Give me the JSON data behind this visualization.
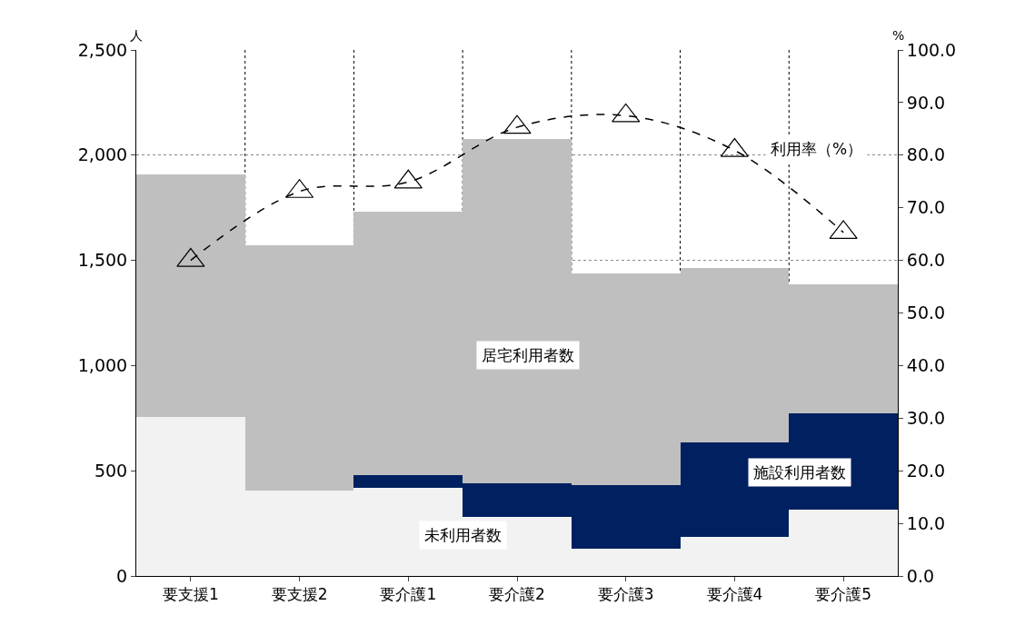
{
  "chart_data": {
    "type": "bar",
    "stacked": true,
    "ylabel": "人",
    "y2label": "%",
    "categories": [
      "要支援1",
      "要支援2",
      "要介護1",
      "要介護2",
      "要介護3",
      "要介護4",
      "要介護5"
    ],
    "series": [
      {
        "name": "未利用者数",
        "color": "#f2f2f2",
        "values": [
          755,
          405,
          420,
          280,
          130,
          185,
          315
        ]
      },
      {
        "name": "施設利用者数",
        "color": "#002060",
        "values": [
          0,
          0,
          60,
          160,
          300,
          450,
          460
        ]
      },
      {
        "name": "居宅利用者数",
        "color": "#bfbfbf",
        "values": [
          1155,
          1165,
          1250,
          1635,
          1010,
          830,
          610
        ]
      },
      {
        "name": "利用率（%）",
        "type": "line",
        "axis": "y2",
        "color": "#000000",
        "marker": "triangle",
        "line_style": "dashed",
        "values": [
          60.0,
          73.1,
          74.9,
          85.3,
          87.5,
          80.9,
          65.3
        ]
      }
    ],
    "ylim": [
      0,
      2500
    ],
    "yticks": [
      0,
      500,
      {
        "value": 1000,
        "label": "1,000"
      },
      {
        "value": 1500,
        "label": "1,500"
      },
      {
        "value": 2000,
        "label": "2,000"
      },
      {
        "value": 2500,
        "label": "2,500"
      }
    ],
    "y2lim": [
      0,
      100
    ],
    "y2ticks": [
      {
        "value": 0,
        "label": "0.0"
      },
      {
        "value": 10,
        "label": "10.0"
      },
      {
        "value": 20,
        "label": "20.0"
      },
      {
        "value": 30,
        "label": "30.0"
      },
      {
        "value": 40,
        "label": "40.0"
      },
      {
        "value": 50,
        "label": "50.0"
      },
      {
        "value": 60,
        "label": "60.0"
      },
      {
        "value": 70,
        "label": "70.0"
      },
      {
        "value": 80,
        "label": "80.0"
      },
      {
        "value": 90,
        "label": "90.0"
      },
      {
        "value": 100,
        "label": "100.0"
      }
    ],
    "grid": true
  }
}
